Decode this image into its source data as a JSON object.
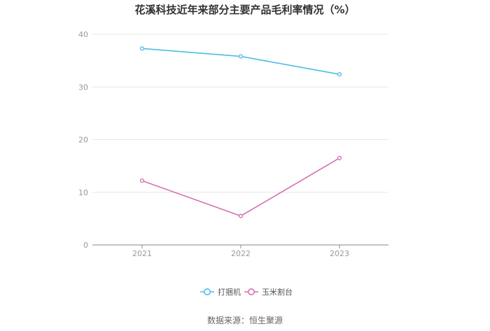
{
  "title": "花溪科技近年来部分主要产品毛利率情况（%）",
  "source": "数据来源：恒生聚源",
  "chart_data": {
    "type": "line",
    "title": "花溪科技近年来部分主要产品毛利率情况（%）",
    "categories": [
      "2021",
      "2022",
      "2023"
    ],
    "y_ticks": [
      "0",
      "10",
      "20",
      "30",
      "40"
    ],
    "ylim": [
      0,
      40
    ],
    "grid": true,
    "legend_position": "bottom",
    "series": [
      {
        "name": "打捆机",
        "color": "#4dbde8",
        "values": [
          37.3,
          35.8,
          32.4
        ]
      },
      {
        "name": "玉米割台",
        "color": "#d66fb0",
        "values": [
          12.2,
          5.5,
          16.5
        ]
      }
    ]
  }
}
